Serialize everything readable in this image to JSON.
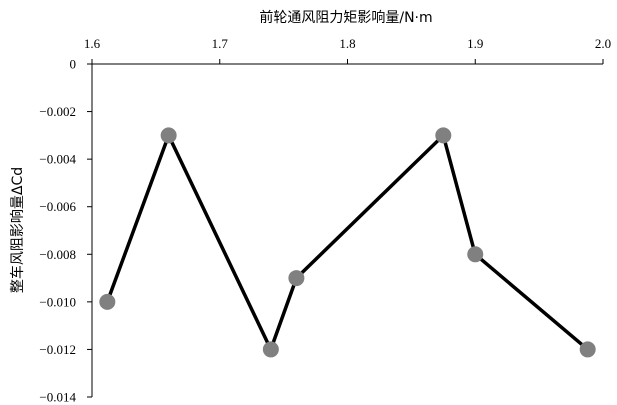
{
  "chart_data": {
    "type": "line",
    "title": "前轮通风阻力矩影响量/N·m",
    "xlabel": "",
    "ylabel": "整车风阻影响量ΔCd",
    "x_axis_position": "top",
    "xlim": [
      1.6,
      2.0
    ],
    "ylim": [
      -0.014,
      0
    ],
    "x_ticks": [
      "1.6",
      "1.7",
      "1.8",
      "1.9",
      "2.0"
    ],
    "y_ticks": [
      "0",
      "-0.002",
      "-0.004",
      "-0.006",
      "-0.008",
      "-0.010",
      "-0.012",
      "-0.014"
    ],
    "grid": false,
    "line_color": "#000000",
    "marker_color": "#808080",
    "series": [
      {
        "x": [
          1.612,
          1.66,
          1.74,
          1.76,
          1.875,
          1.9,
          1.988
        ],
        "y": [
          -0.01,
          -0.003,
          -0.012,
          -0.009,
          -0.003,
          -0.008,
          -0.012
        ]
      }
    ]
  }
}
